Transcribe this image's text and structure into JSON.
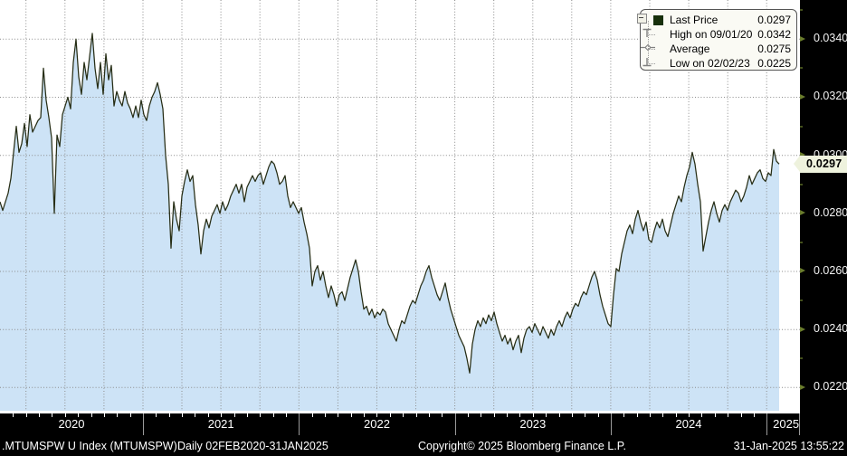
{
  "legend": {
    "items": [
      {
        "label": "Last Price",
        "value": "0.0297"
      },
      {
        "label": "High on 09/01/20",
        "value": "0.0342"
      },
      {
        "label": "Average",
        "value": "0.0275"
      },
      {
        "label": "Low on 02/02/23",
        "value": "0.0225"
      }
    ]
  },
  "y_axis": {
    "labels": [
      "0.0340",
      "0.0320",
      "0.0300",
      "0.0280",
      "0.0260",
      "0.0240",
      "0.0220"
    ],
    "last_price_label": "0.0297"
  },
  "x_axis": {
    "years": [
      "2020",
      "2021",
      "2022",
      "2023",
      "2024",
      "2025"
    ]
  },
  "footer": {
    "instrument": ".MTUMSPW U Index (MTUMSPW)",
    "period": "Daily 02FEB2020-31JAN2025",
    "copyright": "Copyright© 2025 Bloomberg Finance L.P.",
    "timestamp": "31-Jan-2025 13:55:22"
  },
  "colors": {
    "line": "#262d15",
    "area_fill": "#cde3f6",
    "grid": "#8c8c8c",
    "axis_text": "#f2f2f2",
    "tag_bg": "#eef2dd",
    "legend_swatch": "#17300b"
  },
  "chart_data": {
    "type": "area",
    "title": "MTUMSPW U Index — Last Price",
    "xlabel": "",
    "ylabel": "",
    "x_range": {
      "start": "02FEB2020",
      "end": "31JAN2025",
      "sampling": "uniform",
      "points": 288
    },
    "ylim": [
      0.0212,
      0.03535
    ],
    "y_ticks": [
      0.034,
      0.032,
      0.03,
      0.028,
      0.026,
      0.024,
      0.022
    ],
    "x_tick_years": [
      "2020",
      "2021",
      "2022",
      "2023",
      "2024",
      "2025"
    ],
    "grid": "dotted, quarterly vertical + 0.0020 horizontal",
    "legend_position": "top-right",
    "stats": {
      "last_price": 0.0297,
      "high": 0.0342,
      "high_date": "09/01/20",
      "average": 0.0275,
      "low": 0.0225,
      "low_date": "02/02/23"
    },
    "series": [
      {
        "name": "Last Price",
        "values": [
          0.0284,
          0.0281,
          0.0284,
          0.0287,
          0.0292,
          0.0301,
          0.031,
          0.0301,
          0.0304,
          0.0311,
          0.0303,
          0.0314,
          0.0308,
          0.031,
          0.0312,
          0.0313,
          0.033,
          0.0319,
          0.0313,
          0.0306,
          0.028,
          0.0307,
          0.0303,
          0.0314,
          0.0317,
          0.032,
          0.0316,
          0.0332,
          0.034,
          0.0327,
          0.0321,
          0.0332,
          0.0326,
          0.0334,
          0.0342,
          0.033,
          0.0323,
          0.0332,
          0.0321,
          0.0335,
          0.0326,
          0.0331,
          0.0317,
          0.0322,
          0.0319,
          0.0317,
          0.0322,
          0.0318,
          0.0316,
          0.0313,
          0.0317,
          0.0313,
          0.0319,
          0.0314,
          0.0312,
          0.0317,
          0.032,
          0.0322,
          0.0325,
          0.0321,
          0.0316,
          0.03,
          0.029,
          0.0268,
          0.0284,
          0.0278,
          0.0274,
          0.0286,
          0.0291,
          0.0295,
          0.0291,
          0.0293,
          0.0283,
          0.0276,
          0.0266,
          0.0274,
          0.0278,
          0.0275,
          0.0279,
          0.0281,
          0.0283,
          0.028,
          0.0284,
          0.0281,
          0.0283,
          0.0286,
          0.0288,
          0.029,
          0.0287,
          0.029,
          0.0284,
          0.0289,
          0.0291,
          0.0293,
          0.0291,
          0.0293,
          0.0294,
          0.029,
          0.0293,
          0.0296,
          0.0298,
          0.0297,
          0.0294,
          0.029,
          0.0291,
          0.0293,
          0.0286,
          0.0282,
          0.0284,
          0.0282,
          0.028,
          0.0282,
          0.0277,
          0.0273,
          0.0268,
          0.0255,
          0.026,
          0.0262,
          0.0257,
          0.026,
          0.0255,
          0.0251,
          0.0255,
          0.0252,
          0.0248,
          0.0252,
          0.0253,
          0.025,
          0.0254,
          0.0258,
          0.0261,
          0.0264,
          0.026,
          0.0253,
          0.0247,
          0.0248,
          0.0245,
          0.0247,
          0.0244,
          0.0246,
          0.0245,
          0.0247,
          0.0246,
          0.0242,
          0.024,
          0.0238,
          0.0236,
          0.024,
          0.0243,
          0.0242,
          0.0245,
          0.0248,
          0.025,
          0.0249,
          0.0252,
          0.0255,
          0.0257,
          0.026,
          0.0262,
          0.0258,
          0.0255,
          0.0252,
          0.025,
          0.0253,
          0.0256,
          0.0251,
          0.0247,
          0.0244,
          0.0241,
          0.0238,
          0.0236,
          0.0234,
          0.023,
          0.0225,
          0.0235,
          0.024,
          0.0243,
          0.0241,
          0.0244,
          0.0242,
          0.0245,
          0.0243,
          0.0246,
          0.0242,
          0.0239,
          0.0236,
          0.0238,
          0.0235,
          0.0237,
          0.0233,
          0.0236,
          0.0238,
          0.0232,
          0.0237,
          0.024,
          0.0241,
          0.0239,
          0.0242,
          0.024,
          0.0238,
          0.0241,
          0.0239,
          0.0237,
          0.024,
          0.0238,
          0.0241,
          0.0243,
          0.0241,
          0.0244,
          0.0246,
          0.0244,
          0.0247,
          0.0249,
          0.0248,
          0.0251,
          0.0253,
          0.0252,
          0.0255,
          0.0258,
          0.026,
          0.0257,
          0.0252,
          0.0248,
          0.0245,
          0.0242,
          0.0241,
          0.0252,
          0.0261,
          0.026,
          0.0266,
          0.027,
          0.0274,
          0.0276,
          0.0273,
          0.0278,
          0.0281,
          0.0277,
          0.0274,
          0.0277,
          0.0271,
          0.027,
          0.0274,
          0.0277,
          0.0275,
          0.0278,
          0.0274,
          0.0272,
          0.0276,
          0.028,
          0.0283,
          0.0286,
          0.0284,
          0.0289,
          0.0293,
          0.0296,
          0.0301,
          0.0297,
          0.029,
          0.0284,
          0.0267,
          0.0272,
          0.0277,
          0.0281,
          0.0284,
          0.028,
          0.0277,
          0.0281,
          0.0283,
          0.0281,
          0.0284,
          0.0286,
          0.0288,
          0.0287,
          0.0284,
          0.0286,
          0.0289,
          0.0293,
          0.029,
          0.0292,
          0.0294,
          0.0295,
          0.0292,
          0.0291,
          0.0294,
          0.0293,
          0.0302,
          0.0298,
          0.0297
        ]
      }
    ]
  }
}
